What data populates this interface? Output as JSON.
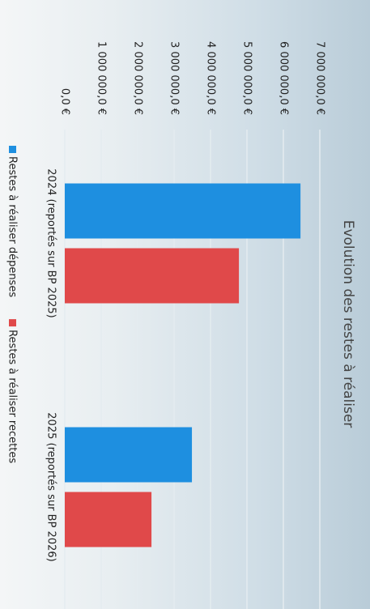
{
  "chart_data": {
    "type": "bar",
    "title": "Evolution des restes à réaliser",
    "categories": [
      "2024 (reportés sur BP 2025)",
      "2025 (reportés sur BP 2026)"
    ],
    "series": [
      {
        "name": "Restes à réaliser dépenses",
        "color": "#1e8fe0",
        "values": [
          6470000,
          3490000
        ]
      },
      {
        "name": "Restes à réaliser recettes",
        "color": "#e0494a",
        "values": [
          4780000,
          2380000
        ]
      }
    ],
    "ylim": [
      0,
      7000000
    ],
    "yticks": [
      {
        "value": 0,
        "label": "0,0 €"
      },
      {
        "value": 1000000,
        "label": "1 000 000,0 €"
      },
      {
        "value": 2000000,
        "label": "2 000 000,0 €"
      },
      {
        "value": 3000000,
        "label": "3 000 000,0 €"
      },
      {
        "value": 4000000,
        "label": "4 000 000,0 €"
      },
      {
        "value": 5000000,
        "label": "5 000 000,0 €"
      },
      {
        "value": 6000000,
        "label": "6 000 000,0 €"
      },
      {
        "value": 7000000,
        "label": "7 000 000,0 €"
      }
    ],
    "grid": true,
    "legend": "bottom"
  }
}
